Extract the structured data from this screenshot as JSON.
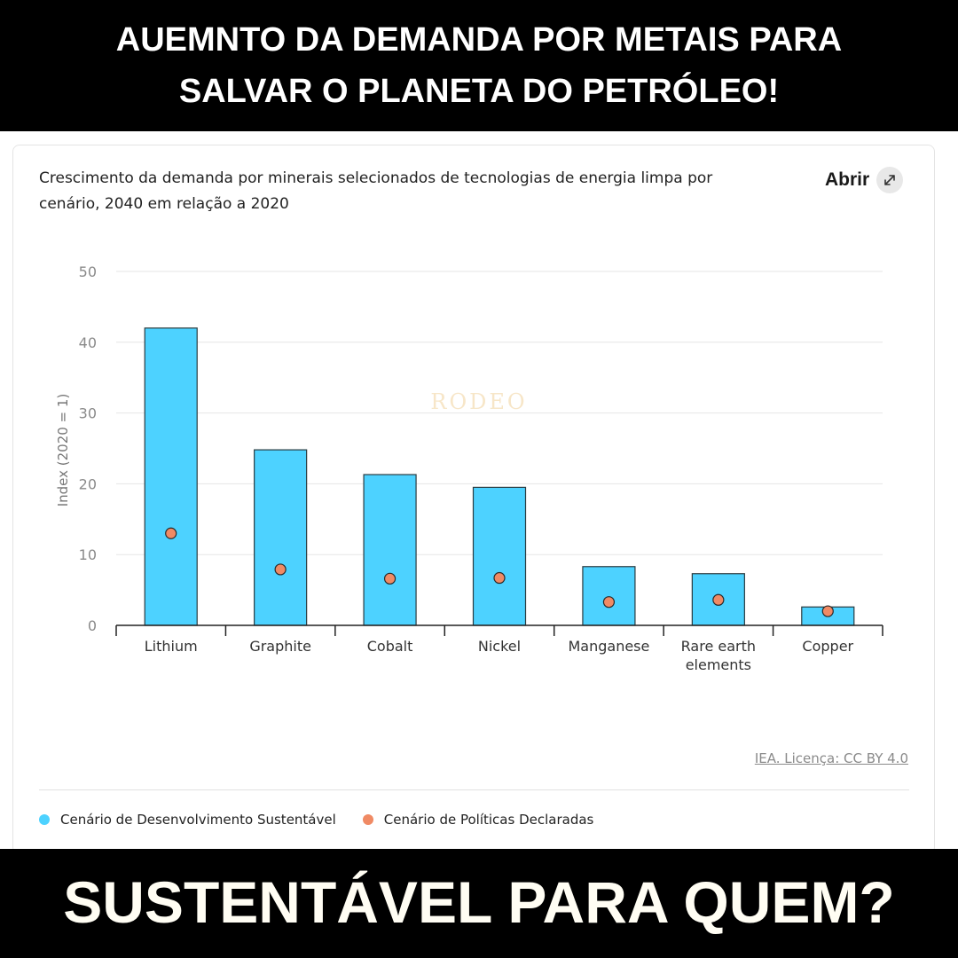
{
  "headline": {
    "line1": "AUEMNTO DA DEMANDA POR METAIS PARA",
    "line2": "SALVAR O PLANETA DO PETRÓLEO!"
  },
  "card": {
    "title": "Crescimento da demanda por minerais selecionados de tecnologias de energia limpa por cenário, 2040 em relação a 2020",
    "open_label": "Abrir",
    "open_icon": "expand-icon",
    "source": "IEA. Licença: CC BY 4.0",
    "watermark": "RODEO"
  },
  "footer": {
    "text": "SUSTENTÁVEL PARA QUEM?"
  },
  "colors": {
    "bar": "#4DD2FF",
    "dot": "#F08A64",
    "grid": "#e6e6e6"
  },
  "chart_data": {
    "type": "bar",
    "title": "",
    "ylabel": "Index (2020 = 1)",
    "xlabel": "",
    "ylim": [
      0,
      50
    ],
    "yticks": [
      0,
      10,
      20,
      30,
      40,
      50
    ],
    "grid": true,
    "legend_position": "bottom",
    "categories": [
      [
        "Lithium"
      ],
      [
        "Graphite"
      ],
      [
        "Cobalt"
      ],
      [
        "Nickel"
      ],
      [
        "Manganese"
      ],
      [
        "Rare earth",
        "elements"
      ],
      [
        "Copper"
      ]
    ],
    "series": [
      {
        "name": "Cenário de Desenvolvimento Sustentável",
        "mark": "bar",
        "values": [
          42,
          24.8,
          21.3,
          19.5,
          8.3,
          7.3,
          2.6
        ]
      },
      {
        "name": "Cenário de Políticas Declaradas",
        "mark": "dot",
        "values": [
          13,
          7.9,
          6.6,
          6.7,
          3.3,
          3.6,
          2.0
        ]
      }
    ]
  }
}
